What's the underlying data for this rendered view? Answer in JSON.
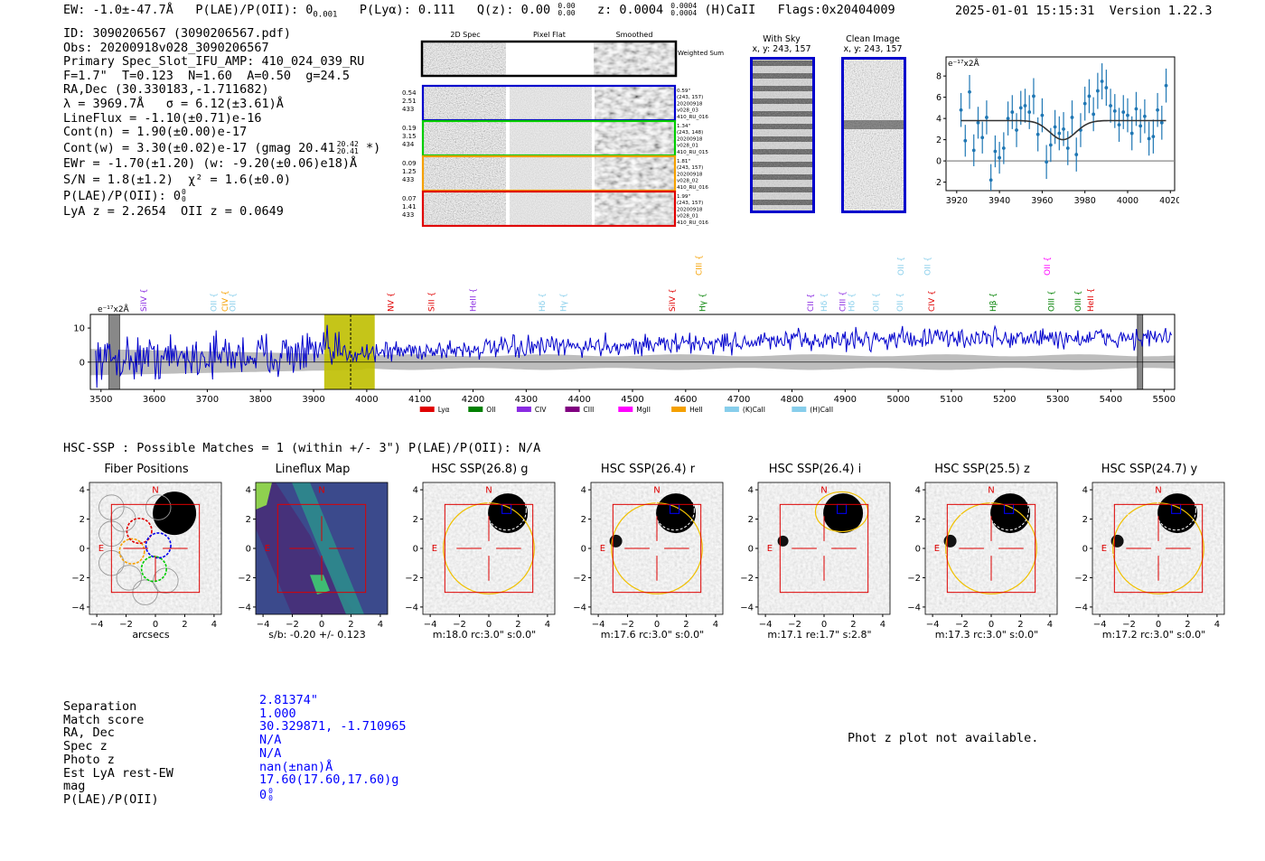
{
  "header": {
    "ew": "EW: -1.0±-47.7Å",
    "plae_label": "P(LAE)/P(OII): 0",
    "plae_sub": "0.001",
    "plya": "P(Lyα): 0.111",
    "qz_label": "Q(z): 0.00",
    "qz_sup": "0.00",
    "qz_sub": "0.00",
    "z_label": "z: 0.0004",
    "z_sup": "0.0004",
    "z_sub": "0.0004",
    "z_line": "(H)CaII",
    "flags": "Flags:0x20404009",
    "datetime": "2025-01-01 15:15:31",
    "version": "Version 1.22.3"
  },
  "info": {
    "id": "ID: 3090206567 (3090206567.pdf)",
    "obs": "Obs: 20200918v028_3090206567",
    "primary": "Primary Spec_Slot_IFU_AMP: 410_024_039_RU",
    "fparams": "F=1.7\"  T=0.123  N=1.60  A=0.50  g=24.5",
    "radec": "RA,Dec (30.330183,-1.711682)",
    "lambda": "λ = 3969.7Å   σ = 6.12(±3.61)Å",
    "lineflux": "LineFlux = -1.10(±0.71)e-16",
    "contn": "Cont(n) = 1.90(±0.00)e-17",
    "contw": "Cont(w) = 3.30(±0.02)e-17 (gmag 20.41",
    "contw_sup": "20.42",
    "contw_sub": "20.41",
    "contw_end": "*)",
    "ewr": "EWr = -1.70(±1.20) (w: -9.20(±0.06)e18)Å",
    "sn": "S/N = 1.8(±1.2)  χ² = 1.6(±0.0)",
    "plae": "P(LAE)/P(OII): 0",
    "plae_sup": "0",
    "plae_sub": "0",
    "lyaz": "LyA z = 2.2654  OII z = 0.0649"
  },
  "cutouts": {
    "col_titles": [
      "2D Spec",
      "Pixel Flat",
      "Smoothed"
    ],
    "weighted_sum": "Weighted Sum",
    "rows": [
      {
        "left": [
          "0.54",
          "2.51",
          "433"
        ],
        "right": [
          "0.59\"",
          "(243, 157)",
          "20200918",
          "v028_03",
          "410_RU_016"
        ],
        "color": "#0000cc"
      },
      {
        "left": [
          "0.19",
          "3.15",
          "434"
        ],
        "right": [
          "1.34\"",
          "(243, 148)",
          "20200918",
          "v028_01",
          "410_RU_015"
        ],
        "color": "#00cc00"
      },
      {
        "left": [
          "0.09",
          "1.25",
          "433"
        ],
        "right": [
          "1.81\"",
          "(243, 157)",
          "20200918",
          "v028_02",
          "410_RU_016"
        ],
        "color": "#f5a000"
      },
      {
        "left": [
          "0.07",
          "1.41",
          "433"
        ],
        "right": [
          "1.99\"",
          "(243, 157)",
          "20200918",
          "v028_01",
          "410_RU_016"
        ],
        "color": "#e00000"
      }
    ],
    "with_sky_title": "With Sky",
    "with_sky_xy": "x, y: 243, 157",
    "clean_title": "Clean Image",
    "clean_xy": "x, y: 243, 157"
  },
  "chart_data": [
    {
      "type": "scatter",
      "title": "",
      "ylabel": "e⁻¹⁷x2Å",
      "xlim": [
        3915,
        4022
      ],
      "ylim": [
        -2.8,
        9.8
      ],
      "xticks": [
        3920,
        3940,
        3960,
        3980,
        4000,
        4020
      ],
      "yticks": [
        -2,
        0,
        2,
        4,
        6,
        8
      ],
      "points": {
        "x": [
          3922,
          3924,
          3926,
          3928,
          3930,
          3932,
          3934,
          3936,
          3938,
          3940,
          3942,
          3944,
          3946,
          3948,
          3950,
          3952,
          3954,
          3956,
          3958,
          3960,
          3962,
          3964,
          3966,
          3968,
          3970,
          3972,
          3974,
          3976,
          3978,
          3980,
          3982,
          3984,
          3986,
          3988,
          3990,
          3992,
          3994,
          3996,
          3998,
          4000,
          4002,
          4004,
          4006,
          4008,
          4010,
          4012,
          4014,
          4016,
          4018
        ],
        "y": [
          4.8,
          1.9,
          6.5,
          1.0,
          3.6,
          2.2,
          4.1,
          -1.8,
          0.9,
          0.3,
          1.2,
          4.0,
          4.6,
          2.9,
          5.0,
          5.2,
          4.6,
          6.1,
          2.5,
          4.3,
          -0.1,
          1.5,
          3.2,
          2.6,
          3.0,
          1.2,
          4.1,
          0.6,
          2.9,
          5.4,
          6.1,
          4.4,
          6.6,
          7.5,
          6.9,
          5.2,
          4.7,
          3.4,
          4.6,
          4.3,
          2.6,
          4.9,
          3.3,
          4.2,
          2.1,
          2.3,
          4.8,
          3.6,
          7.1
        ],
        "err": [
          1.6,
          1.5,
          1.6,
          1.5,
          1.5,
          1.5,
          1.6,
          1.5,
          1.5,
          1.5,
          1.5,
          1.6,
          1.6,
          1.6,
          1.6,
          1.6,
          1.6,
          1.7,
          1.6,
          1.6,
          1.6,
          1.6,
          1.6,
          1.6,
          1.6,
          1.6,
          1.6,
          1.6,
          1.6,
          1.6,
          1.6,
          1.6,
          1.7,
          1.7,
          1.7,
          1.6,
          1.6,
          1.6,
          1.6,
          1.6,
          1.6,
          1.6,
          1.6,
          1.6,
          1.6,
          1.6,
          1.6,
          1.6,
          1.6
        ]
      },
      "model": {
        "continuum": 3.8,
        "center": 3969.7,
        "sigma": 6.12,
        "amplitude": -1.8
      },
      "zero_line": 0
    },
    {
      "type": "line",
      "ylabel": "e⁻¹⁷x2Å",
      "xlim": [
        3480,
        5520
      ],
      "ylim": [
        -8,
        14
      ],
      "xticks": [
        3500,
        3600,
        3700,
        3800,
        3900,
        4000,
        4100,
        4200,
        4300,
        4400,
        4500,
        4600,
        4700,
        4800,
        4900,
        5000,
        5100,
        5200,
        5300,
        5400,
        5500
      ],
      "yticks": [
        0,
        10
      ],
      "highlight_band": [
        3920,
        4015
      ],
      "line_marker": 3969.7,
      "grey_bands": [
        [
          3515,
          3535
        ],
        [
          5450,
          5460
        ]
      ],
      "spectrum_level_start": 1,
      "spectrum_level_end": 7,
      "emission_lines": [
        {
          "label": "SiIV",
          "x": 3580,
          "color": "#8a2be2",
          "row": 1
        },
        {
          "label": "OII",
          "x": 3712,
          "color": "#87ceeb",
          "row": 1
        },
        {
          "label": "CIV",
          "x": 3733,
          "color": "#f5a000",
          "row": 1
        },
        {
          "label": "OII",
          "x": 3748,
          "color": "#87ceeb",
          "row": 1
        },
        {
          "label": "NV",
          "x": 4045,
          "color": "#e00000",
          "row": 1
        },
        {
          "label": "SiII",
          "x": 4122,
          "color": "#e00000",
          "row": 1
        },
        {
          "label": "HeII",
          "x": 4200,
          "color": "#8a2be2",
          "row": 1
        },
        {
          "label": "Hδ",
          "x": 4330,
          "color": "#87ceeb",
          "row": 1
        },
        {
          "label": "Hγ",
          "x": 4370,
          "color": "#87ceeb",
          "row": 1
        },
        {
          "label": "SiIV",
          "x": 4575,
          "color": "#e00000",
          "row": 1
        },
        {
          "label": "Hγ",
          "x": 4632,
          "color": "#008000",
          "row": 1
        },
        {
          "label": "CIII",
          "x": 4625,
          "color": "#f5a000",
          "row": 2
        },
        {
          "label": "CII",
          "x": 4835,
          "color": "#8a2be2",
          "row": 1
        },
        {
          "label": "Hδ",
          "x": 4860,
          "color": "#87ceeb",
          "row": 1
        },
        {
          "label": "CIII",
          "x": 4895,
          "color": "#8a2be2",
          "row": 1
        },
        {
          "label": "Hδ",
          "x": 4912,
          "color": "#87ceeb",
          "row": 1
        },
        {
          "label": "OII",
          "x": 4958,
          "color": "#87ceeb",
          "row": 1
        },
        {
          "label": "OII",
          "x": 5003,
          "color": "#87ceeb",
          "row": 1
        },
        {
          "label": "OII",
          "x": 5005,
          "color": "#87ceeb",
          "row": 2
        },
        {
          "label": "CIV",
          "x": 5063,
          "color": "#e00000",
          "row": 1
        },
        {
          "label": "OII",
          "x": 5055,
          "color": "#87ceeb",
          "row": 2
        },
        {
          "label": "Hβ",
          "x": 5178,
          "color": "#008000",
          "row": 1
        },
        {
          "label": "OIII",
          "x": 5288,
          "color": "#008000",
          "row": 1
        },
        {
          "label": "OII",
          "x": 5280,
          "color": "#ff00ff",
          "row": 2
        },
        {
          "label": "OIII",
          "x": 5338,
          "color": "#008000",
          "row": 1
        },
        {
          "label": "HeII",
          "x": 5362,
          "color": "#e00000",
          "row": 1
        }
      ],
      "legend": [
        {
          "label": "Lyα",
          "color": "#e00000"
        },
        {
          "label": "OII",
          "color": "#008000"
        },
        {
          "label": "CIV",
          "color": "#8a2be2"
        },
        {
          "label": "CIII",
          "color": "#800080"
        },
        {
          "label": "MgII",
          "color": "#ff00ff"
        },
        {
          "label": "HeII",
          "color": "#f5a000"
        },
        {
          "label": "(K)CaII",
          "color": "#87ceeb"
        },
        {
          "label": "(H)CaII",
          "color": "#87ceeb"
        }
      ]
    }
  ],
  "hsc": {
    "header": "HSC-SSP : Possible Matches = 1 (within +/- 3\")  P(LAE)/P(OII): N/A",
    "panels": [
      {
        "title": "Fiber Positions",
        "caption": "arcsecs",
        "kind": "fibers"
      },
      {
        "title": "Lineflux Map",
        "caption": "s/b: -0.20 +/- 0.123",
        "kind": "lineflux"
      },
      {
        "title": "HSC SSP(26.8) g",
        "caption": "m:18.0 rc:3.0\"  s:0.0\"",
        "kind": "cutout"
      },
      {
        "title": "HSC SSP(26.4) r",
        "caption": "m:17.6 rc:3.0\"  s:0.0\"",
        "kind": "cutout"
      },
      {
        "title": "HSC SSP(26.4) i",
        "caption": "m:17.1  re:1.7\"  s:2.8\"",
        "kind": "cutout_i"
      },
      {
        "title": "HSC SSP(25.5) z",
        "caption": "m:17.3 rc:3.0\"  s:0.0\"",
        "kind": "cutout"
      },
      {
        "title": "HSC SSP(24.7) y",
        "caption": "m:17.2 rc:3.0\"  s:0.0\"",
        "kind": "cutout"
      }
    ],
    "ticks": [
      "4",
      "2",
      "0",
      "−2",
      "−4"
    ],
    "xticks": [
      "−4",
      "−2",
      "0",
      "2",
      "4"
    ],
    "n_label": "N",
    "e_label": "E"
  },
  "match": {
    "labels": [
      "Separation",
      "Match score",
      "RA, Dec",
      "Spec z",
      "Photo z",
      "Est LyA rest-EW",
      "mag",
      "P(LAE)/P(OII)"
    ],
    "values": [
      "2.81374\"",
      "1.000",
      "30.329871, -1.710965",
      "N/A",
      "N/A",
      "nan(±nan)Å",
      "17.60(17.60,17.60)g",
      "0"
    ],
    "plae_sup": "0",
    "plae_sub": "0",
    "photz_note": "Phot z plot not available."
  }
}
